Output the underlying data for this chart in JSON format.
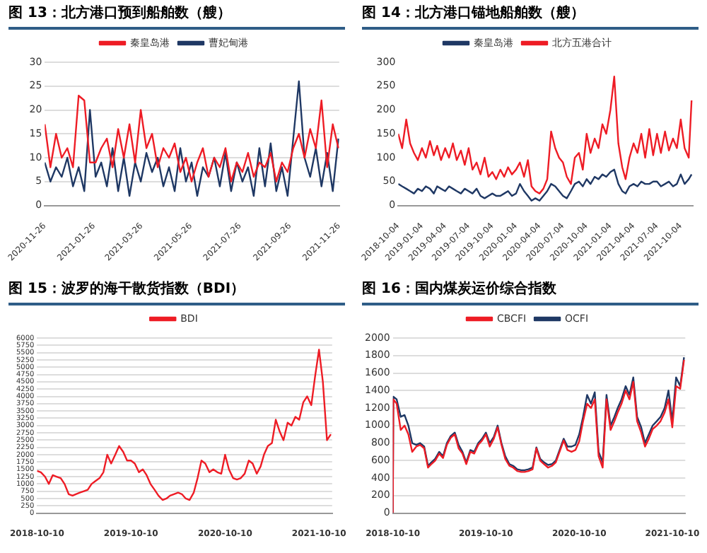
{
  "chart_data": [
    {
      "type": "line",
      "title": "图 13：北方港口预到船舶数（艘）",
      "legend": "top",
      "grid": "y",
      "ylim": [
        0,
        30
      ],
      "yticks": [
        0,
        5,
        10,
        15,
        20,
        25,
        30
      ],
      "xlim": [
        "2020-11-26",
        "2021-11-26"
      ],
      "xticks": [
        "2020-11-26",
        "2021-01-26",
        "2021-03-26",
        "2021-05-26",
        "2021-07-26",
        "2021-09-26",
        "2021-11-26"
      ],
      "x": [
        "2020-11-26",
        "2020-12-03",
        "2020-12-10",
        "2020-12-17",
        "2020-12-24",
        "2020-12-31",
        "2021-01-07",
        "2021-01-14",
        "2021-01-21",
        "2021-01-28",
        "2021-02-04",
        "2021-02-11",
        "2021-02-18",
        "2021-02-25",
        "2021-03-04",
        "2021-03-11",
        "2021-03-18",
        "2021-03-25",
        "2021-04-01",
        "2021-04-08",
        "2021-04-15",
        "2021-04-22",
        "2021-04-29",
        "2021-05-06",
        "2021-05-13",
        "2021-05-20",
        "2021-05-27",
        "2021-06-03",
        "2021-06-10",
        "2021-06-17",
        "2021-06-24",
        "2021-07-01",
        "2021-07-08",
        "2021-07-15",
        "2021-07-22",
        "2021-07-29",
        "2021-08-05",
        "2021-08-12",
        "2021-08-19",
        "2021-08-26",
        "2021-09-02",
        "2021-09-09",
        "2021-09-16",
        "2021-09-23",
        "2021-09-30",
        "2021-10-07",
        "2021-10-14",
        "2021-10-21",
        "2021-10-28",
        "2021-11-04",
        "2021-11-11",
        "2021-11-18",
        "2021-11-25"
      ],
      "series": [
        {
          "name": "秦皇岛港",
          "color": "#ee1c25",
          "values": [
            17,
            8,
            15,
            10,
            12,
            8,
            23,
            22,
            9,
            9,
            12,
            14,
            8,
            16,
            10,
            17,
            9,
            20,
            12,
            15,
            8,
            12,
            10,
            13,
            7,
            10,
            5,
            9,
            12,
            6,
            10,
            8,
            12,
            5,
            9,
            7,
            11,
            6,
            9,
            8,
            11,
            5,
            9,
            7,
            12,
            15,
            10,
            16,
            12,
            22,
            8,
            17,
            12
          ]
        },
        {
          "name": "曹妃甸港",
          "color": "#1f3864",
          "values": [
            9,
            5,
            8,
            6,
            10,
            4,
            8,
            3,
            20,
            6,
            9,
            4,
            12,
            3,
            10,
            2,
            9,
            5,
            11,
            7,
            10,
            4,
            8,
            3,
            12,
            5,
            9,
            2,
            8,
            6,
            10,
            4,
            11,
            3,
            9,
            5,
            8,
            2,
            12,
            4,
            13,
            3,
            8,
            2,
            14,
            26,
            10,
            6,
            12,
            4,
            11,
            3,
            14
          ]
        }
      ]
    },
    {
      "type": "line",
      "title": "图 14：北方港口锚地船舶数（艘）",
      "legend": "top",
      "ylim": [
        0,
        300
      ],
      "yticks": [
        0,
        50,
        100,
        150,
        200,
        250,
        300
      ],
      "xlim": [
        "2018-10-04",
        "2021-11-20"
      ],
      "xticks": [
        "2018-10-04",
        "2019-01-04",
        "2019-04-04",
        "2019-07-04",
        "2019-10-04",
        "2020-01-04",
        "2020-04-04",
        "2020-07-04",
        "2020-10-04",
        "2021-01-04",
        "2021-04-04",
        "2021-07-04",
        "2021-10-04"
      ],
      "x": [
        "2018-10-04",
        "2018-10-19",
        "2018-11-04",
        "2018-11-19",
        "2018-12-04",
        "2018-12-19",
        "2019-01-04",
        "2019-01-19",
        "2019-02-04",
        "2019-02-19",
        "2019-03-04",
        "2019-03-19",
        "2019-04-04",
        "2019-04-19",
        "2019-05-04",
        "2019-05-19",
        "2019-06-04",
        "2019-06-19",
        "2019-07-04",
        "2019-07-19",
        "2019-08-04",
        "2019-08-19",
        "2019-09-04",
        "2019-09-19",
        "2019-10-04",
        "2019-10-19",
        "2019-11-04",
        "2019-11-19",
        "2019-12-04",
        "2019-12-19",
        "2020-01-04",
        "2020-01-19",
        "2020-02-04",
        "2020-02-19",
        "2020-03-04",
        "2020-03-19",
        "2020-04-04",
        "2020-04-19",
        "2020-05-04",
        "2020-05-19",
        "2020-06-04",
        "2020-06-19",
        "2020-07-04",
        "2020-07-19",
        "2020-08-04",
        "2020-08-19",
        "2020-09-04",
        "2020-09-19",
        "2020-10-04",
        "2020-10-19",
        "2020-11-04",
        "2020-11-19",
        "2020-12-04",
        "2020-12-19",
        "2021-01-04",
        "2021-01-19",
        "2021-02-04",
        "2021-02-19",
        "2021-03-04",
        "2021-03-19",
        "2021-04-04",
        "2021-04-19",
        "2021-05-04",
        "2021-05-19",
        "2021-06-04",
        "2021-06-19",
        "2021-07-04",
        "2021-07-19",
        "2021-08-04",
        "2021-08-19",
        "2021-09-04",
        "2021-09-19",
        "2021-10-04",
        "2021-10-19",
        "2021-11-04",
        "2021-11-15"
      ],
      "series": [
        {
          "name": "秦皇岛港",
          "color": "#1f3864",
          "values": [
            45,
            40,
            35,
            30,
            25,
            35,
            30,
            40,
            35,
            25,
            40,
            35,
            30,
            40,
            35,
            30,
            25,
            35,
            30,
            25,
            35,
            20,
            15,
            20,
            25,
            20,
            20,
            25,
            30,
            20,
            25,
            45,
            30,
            20,
            10,
            15,
            10,
            20,
            30,
            45,
            40,
            30,
            20,
            15,
            30,
            45,
            50,
            40,
            55,
            45,
            60,
            55,
            65,
            60,
            70,
            75,
            45,
            30,
            25,
            40,
            45,
            40,
            50,
            45,
            45,
            50,
            50,
            40,
            45,
            50,
            40,
            45,
            65,
            45,
            55,
            65
          ]
        },
        {
          "name": "北方五港合计",
          "color": "#ee1c25",
          "values": [
            150,
            120,
            180,
            130,
            110,
            95,
            120,
            100,
            135,
            105,
            125,
            95,
            120,
            100,
            130,
            95,
            115,
            85,
            120,
            75,
            90,
            65,
            100,
            60,
            70,
            55,
            75,
            60,
            80,
            65,
            75,
            90,
            60,
            95,
            40,
            30,
            25,
            35,
            55,
            155,
            120,
            100,
            90,
            60,
            45,
            100,
            110,
            75,
            150,
            110,
            140,
            120,
            170,
            150,
            200,
            270,
            130,
            80,
            55,
            100,
            130,
            110,
            150,
            100,
            160,
            105,
            150,
            110,
            155,
            115,
            140,
            120,
            180,
            120,
            100,
            220
          ]
        }
      ]
    },
    {
      "type": "line",
      "title": "图 15：波罗的海干散货指数（BDI）",
      "legend": "top",
      "grid": "y",
      "ylim": [
        0,
        6000
      ],
      "yticks": [
        0,
        250,
        500,
        750,
        1000,
        1250,
        1500,
        1750,
        2000,
        2250,
        2500,
        2750,
        3000,
        3250,
        3500,
        3750,
        4000,
        4250,
        4500,
        4750,
        5000,
        5250,
        5500,
        5750,
        6000
      ],
      "xlim": [
        "2018-10-10",
        "2021-11-30"
      ],
      "xticks": [
        "2018-10-10",
        "2019-10-10",
        "2020-10-10",
        "2021-10-10"
      ],
      "x": [
        "2018-10-10",
        "2018-10-25",
        "2018-11-10",
        "2018-11-25",
        "2018-12-10",
        "2018-12-25",
        "2019-01-10",
        "2019-01-25",
        "2019-02-10",
        "2019-02-25",
        "2019-03-10",
        "2019-03-25",
        "2019-04-10",
        "2019-04-25",
        "2019-05-10",
        "2019-05-25",
        "2019-06-10",
        "2019-06-25",
        "2019-07-10",
        "2019-07-25",
        "2019-08-10",
        "2019-08-25",
        "2019-09-10",
        "2019-09-25",
        "2019-10-10",
        "2019-10-25",
        "2019-11-10",
        "2019-11-25",
        "2019-12-10",
        "2019-12-25",
        "2020-01-10",
        "2020-01-25",
        "2020-02-10",
        "2020-02-25",
        "2020-03-10",
        "2020-03-25",
        "2020-04-10",
        "2020-04-25",
        "2020-05-10",
        "2020-05-25",
        "2020-06-10",
        "2020-06-25",
        "2020-07-10",
        "2020-07-25",
        "2020-08-10",
        "2020-08-25",
        "2020-09-10",
        "2020-09-25",
        "2020-10-10",
        "2020-10-25",
        "2020-11-10",
        "2020-11-25",
        "2020-12-10",
        "2020-12-25",
        "2021-01-10",
        "2021-01-25",
        "2021-02-10",
        "2021-02-25",
        "2021-03-10",
        "2021-03-25",
        "2021-04-10",
        "2021-04-25",
        "2021-05-10",
        "2021-05-25",
        "2021-06-10",
        "2021-06-25",
        "2021-07-10",
        "2021-07-25",
        "2021-08-10",
        "2021-08-25",
        "2021-09-10",
        "2021-09-25",
        "2021-10-10",
        "2021-10-25",
        "2021-11-10",
        "2021-11-25"
      ],
      "series": [
        {
          "name": "BDI",
          "color": "#ee1c25",
          "values": [
            1450,
            1400,
            1250,
            1000,
            1300,
            1250,
            1200,
            1000,
            650,
            600,
            650,
            700,
            750,
            800,
            1000,
            1100,
            1200,
            1400,
            2000,
            1700,
            2000,
            2300,
            2100,
            1800,
            1800,
            1700,
            1400,
            1500,
            1300,
            1000,
            800,
            600,
            450,
            500,
            600,
            650,
            700,
            650,
            500,
            450,
            700,
            1200,
            1800,
            1700,
            1400,
            1500,
            1400,
            1350,
            2000,
            1500,
            1200,
            1150,
            1200,
            1350,
            1800,
            1700,
            1350,
            1600,
            2000,
            2300,
            2400,
            3200,
            2800,
            2500,
            3100,
            3000,
            3300,
            3200,
            3800,
            4000,
            3700,
            4700,
            5600,
            4500,
            2500,
            2700
          ]
        }
      ]
    },
    {
      "type": "line",
      "title": "图 16：国内煤炭运价综合指数",
      "legend": "top",
      "grid": "y",
      "ylim": [
        0,
        2000
      ],
      "yticks": [
        0,
        200,
        400,
        600,
        800,
        1000,
        1200,
        1400,
        1600,
        1800,
        2000
      ],
      "xlim": [
        "2018-10-10",
        "2021-11-30"
      ],
      "xticks": [
        "2018-10-10",
        "2019-10-10",
        "2020-10-10",
        "2021-10-10"
      ],
      "x": [
        "2018-10-10",
        "2018-10-12",
        "2018-10-25",
        "2018-11-10",
        "2018-11-25",
        "2018-12-10",
        "2018-12-25",
        "2019-01-10",
        "2019-01-25",
        "2019-02-10",
        "2019-02-25",
        "2019-03-10",
        "2019-03-25",
        "2019-04-10",
        "2019-04-25",
        "2019-05-10",
        "2019-05-25",
        "2019-06-10",
        "2019-06-25",
        "2019-07-10",
        "2019-07-25",
        "2019-08-10",
        "2019-08-25",
        "2019-09-10",
        "2019-09-25",
        "2019-10-10",
        "2019-10-25",
        "2019-11-10",
        "2019-11-25",
        "2019-12-10",
        "2019-12-25",
        "2020-01-10",
        "2020-01-25",
        "2020-02-10",
        "2020-02-25",
        "2020-03-10",
        "2020-03-25",
        "2020-04-10",
        "2020-04-25",
        "2020-05-10",
        "2020-05-25",
        "2020-06-10",
        "2020-06-25",
        "2020-07-10",
        "2020-07-25",
        "2020-08-10",
        "2020-08-25",
        "2020-09-10",
        "2020-09-25",
        "2020-10-10",
        "2020-10-25",
        "2020-11-10",
        "2020-11-25",
        "2020-12-10",
        "2020-12-25",
        "2021-01-10",
        "2021-01-25",
        "2021-02-10",
        "2021-02-25",
        "2021-03-10",
        "2021-03-25",
        "2021-04-10",
        "2021-04-25",
        "2021-05-10",
        "2021-05-25",
        "2021-06-10",
        "2021-06-25",
        "2021-07-10",
        "2021-07-25",
        "2021-08-10",
        "2021-08-25",
        "2021-09-10",
        "2021-09-25",
        "2021-10-10",
        "2021-10-25",
        "2021-11-10",
        "2021-11-25"
      ],
      "series": [
        {
          "name": "CBCFI",
          "color": "#ee1c25",
          "values": [
            0,
            1300,
            1250,
            950,
            1000,
            900,
            700,
            760,
            780,
            740,
            520,
            560,
            600,
            680,
            630,
            780,
            860,
            900,
            740,
            680,
            560,
            700,
            680,
            780,
            830,
            900,
            760,
            850,
            980,
            780,
            620,
            540,
            520,
            480,
            470,
            470,
            480,
            500,
            740,
            600,
            560,
            520,
            540,
            580,
            700,
            830,
            720,
            700,
            720,
            820,
            1050,
            1250,
            1200,
            1300,
            650,
            520,
            1300,
            950,
            1050,
            1150,
            1250,
            1400,
            1300,
            1500,
            1050,
            920,
            760,
            850,
            960,
            1000,
            1050,
            1150,
            1300,
            980,
            1450,
            1420,
            1750
          ]
        },
        {
          "name": "OCFI",
          "color": "#1f3864",
          "values": [
            0,
            1330,
            1300,
            1100,
            1120,
            1000,
            800,
            780,
            800,
            760,
            540,
            580,
            620,
            700,
            650,
            800,
            880,
            920,
            780,
            700,
            580,
            720,
            700,
            800,
            850,
            920,
            800,
            870,
            1000,
            800,
            650,
            560,
            540,
            500,
            490,
            490,
            500,
            520,
            750,
            620,
            580,
            550,
            560,
            600,
            720,
            850,
            760,
            760,
            780,
            900,
            1100,
            1350,
            1250,
            1380,
            700,
            580,
            1350,
            1000,
            1100,
            1200,
            1300,
            1450,
            1350,
            1550,
            1100,
            980,
            800,
            900,
            1000,
            1050,
            1100,
            1200,
            1400,
            1050,
            1550,
            1450,
            1780
          ]
        }
      ]
    }
  ]
}
